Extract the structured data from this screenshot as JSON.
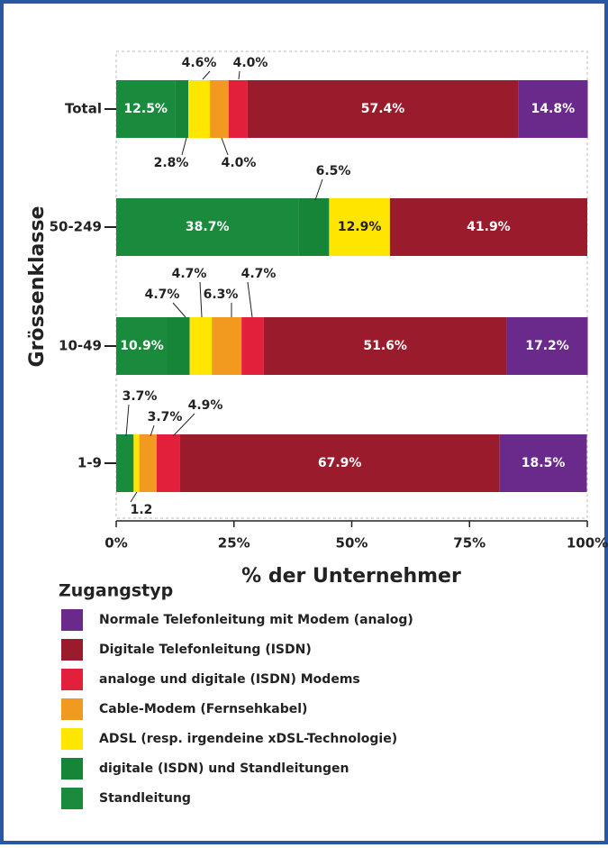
{
  "chart_data": {
    "type": "stacked-barh",
    "categories": [
      "Total",
      "50-249",
      "10-49",
      "1-9"
    ],
    "series": [
      {
        "name": "Standleitung",
        "color": "#1a8a3c",
        "values": [
          12.5,
          38.7,
          10.9,
          3.7
        ],
        "value_labels": [
          "12.5%",
          "38.7%",
          "10.9%",
          "3.7%"
        ]
      },
      {
        "name": "digitale (ISDN) und Standleitungen",
        "color": "#178538",
        "values": [
          2.8,
          6.5,
          4.7,
          null
        ],
        "value_labels": [
          "2.8%",
          "6.5%",
          "4.7%",
          null
        ]
      },
      {
        "name": "ADSL (resp. irgendeine xDSL-Technologie)",
        "color": "#ffe600",
        "values": [
          4.6,
          12.9,
          4.7,
          1.2
        ],
        "value_labels": [
          "4.6%",
          "12.9%",
          "4.7%",
          "1.2"
        ]
      },
      {
        "name": "Cable-Modem (Fernsehkabel)",
        "color": "#f29a1f",
        "values": [
          4.0,
          null,
          6.3,
          3.7
        ],
        "value_labels": [
          "4.0%",
          null,
          "6.3%",
          "3.7%"
        ]
      },
      {
        "name": "analoge und digitale (ISDN) Modems",
        "color": "#e3203c",
        "values": [
          4.0,
          null,
          4.7,
          4.9
        ],
        "value_labels": [
          "4.0%",
          null,
          "4.7%",
          "4.9%"
        ]
      },
      {
        "name": "Digitale Telefonleitung (ISDN)",
        "color": "#9a1b2b",
        "values": [
          57.4,
          41.9,
          51.6,
          67.9
        ],
        "value_labels": [
          "57.4%",
          "41.9%",
          "51.6%",
          "67.9%"
        ]
      },
      {
        "name": "Normale Telefonleitung mit Modem (analog)",
        "color": "#6a2a8c",
        "values": [
          14.8,
          null,
          17.2,
          18.5
        ],
        "value_labels": [
          "14.8%",
          null,
          "17.2%",
          "18.5%"
        ]
      }
    ],
    "xlim": [
      0,
      100
    ],
    "xticks": [
      {
        "value": 0,
        "label": "0%"
      },
      {
        "value": 25,
        "label": "25%"
      },
      {
        "value": 50,
        "label": "50%"
      },
      {
        "value": 75,
        "label": "75%"
      },
      {
        "value": 100,
        "label": "100%"
      }
    ],
    "xlabel": "% der Unternehmer",
    "ylabel": "Grössenklasse",
    "legend_title": "Zugangstyp"
  }
}
